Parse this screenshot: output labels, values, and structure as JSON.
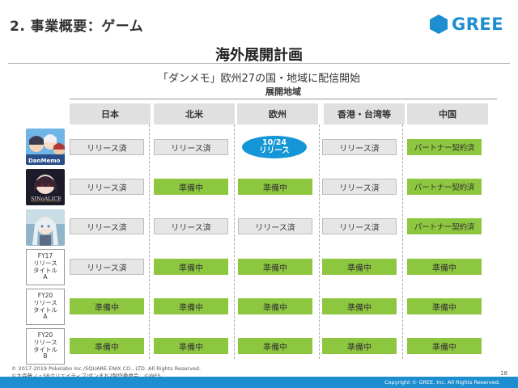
{
  "header": {
    "section_title": "2. 事業概要：ゲーム",
    "logo_text": "GREE",
    "brand_color": "#1d8ecf"
  },
  "main": {
    "title": "海外展開計画",
    "subtitle": "「ダンメモ」欧州27の国・地域に配信開始",
    "region_header": "展開地域"
  },
  "columns": [
    "日本",
    "北米",
    "欧州",
    "香港・台湾等",
    "中国"
  ],
  "rows": [
    {
      "label": null,
      "image": "game-thumbnail-danmemo",
      "cells": [
        {
          "text": "リリース済",
          "status": "released"
        },
        {
          "text": "リリース済",
          "status": "released"
        },
        {
          "text": "10/24",
          "text2": "リリース",
          "status": "highlight"
        },
        {
          "text": "リリース済",
          "status": "released"
        },
        {
          "text": "パートナー契約済",
          "status": "partner"
        }
      ]
    },
    {
      "label": null,
      "image": "game-thumbnail-sinoalice",
      "cells": [
        {
          "text": "リリース済",
          "status": "released"
        },
        {
          "text": "準備中",
          "status": "preparing"
        },
        {
          "text": "準備中",
          "status": "preparing"
        },
        {
          "text": "リリース済",
          "status": "released"
        },
        {
          "text": "パートナー契約済",
          "status": "partner"
        }
      ]
    },
    {
      "label": null,
      "image": "game-thumbnail-third",
      "cells": [
        {
          "text": "リリース済",
          "status": "released"
        },
        {
          "text": "リリース済",
          "status": "released"
        },
        {
          "text": "リリース済",
          "status": "released"
        },
        {
          "text": "リリース済",
          "status": "released"
        },
        {
          "text": "パートナー契約済",
          "status": "partner"
        }
      ]
    },
    {
      "label": [
        "FY17",
        "リリース",
        "タイトル",
        "A"
      ],
      "cells": [
        {
          "text": "リリース済",
          "status": "released"
        },
        {
          "text": "準備中",
          "status": "preparing"
        },
        {
          "text": "準備中",
          "status": "preparing"
        },
        {
          "text": "準備中",
          "status": "preparing"
        },
        {
          "text": "準備中",
          "status": "preparing"
        }
      ]
    },
    {
      "label": [
        "FY20",
        "リリース",
        "タイトル",
        "A"
      ],
      "cells": [
        {
          "text": "準備中",
          "status": "preparing"
        },
        {
          "text": "準備中",
          "status": "preparing"
        },
        {
          "text": "準備中",
          "status": "preparing"
        },
        {
          "text": "準備中",
          "status": "preparing"
        },
        {
          "text": "準備中",
          "status": "preparing"
        }
      ]
    },
    {
      "label": [
        "FY20",
        "リリース",
        "タイトル",
        "B"
      ],
      "cells": [
        {
          "text": "準備中",
          "status": "preparing"
        },
        {
          "text": "準備中",
          "status": "preparing"
        },
        {
          "text": "準備中",
          "status": "preparing"
        },
        {
          "text": "準備中",
          "status": "preparing"
        },
        {
          "text": "準備中",
          "status": "preparing"
        }
      ]
    }
  ],
  "footer": {
    "copyright_1": "© 2017-2019 Pokelabo Inc./SQUARE ENIX CO., LTD. All Rights Reserved.",
    "copyright_2": "©大森藤ノ・SBクリエイティブ/ダンまち2製作委員会　©WFS",
    "page_number": "18",
    "gree_copyright": "Copyright © GREE, Inc. All Rights Reserved."
  }
}
